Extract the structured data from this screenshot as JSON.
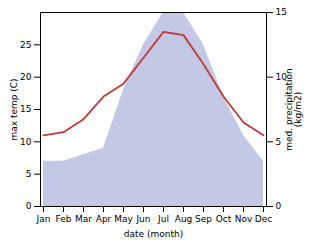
{
  "chart_data": {
    "type": "line",
    "categories": [
      "Jan",
      "Feb",
      "Mar",
      "Apr",
      "May",
      "Jun",
      "Jul",
      "Aug",
      "Sep",
      "Oct",
      "Nov",
      "Dec"
    ],
    "series": [
      {
        "type": "area",
        "axis": "y2",
        "color": "#b8bfdf",
        "values": [
          3.5,
          3.5,
          4.0,
          4.5,
          9.0,
          12.5,
          15.0,
          15.0,
          12.5,
          8.5,
          5.5,
          3.5
        ]
      },
      {
        "type": "line",
        "color": "#c0393b",
        "values": [
          11,
          11.5,
          13.5,
          17,
          19,
          23,
          27,
          26.5,
          22,
          17,
          13,
          11
        ]
      }
    ],
    "xlabel": "date (month)",
    "ylabel": "max temp (C)",
    "y2label": "med. precipitation\n(kg/m2)",
    "ylim": [
      0,
      30
    ],
    "yticks": [
      0,
      5,
      10,
      15,
      20,
      25
    ],
    "y2lim": [
      0,
      15
    ],
    "y2ticks": [
      0,
      5,
      10,
      15
    ],
    "grid": false
  }
}
